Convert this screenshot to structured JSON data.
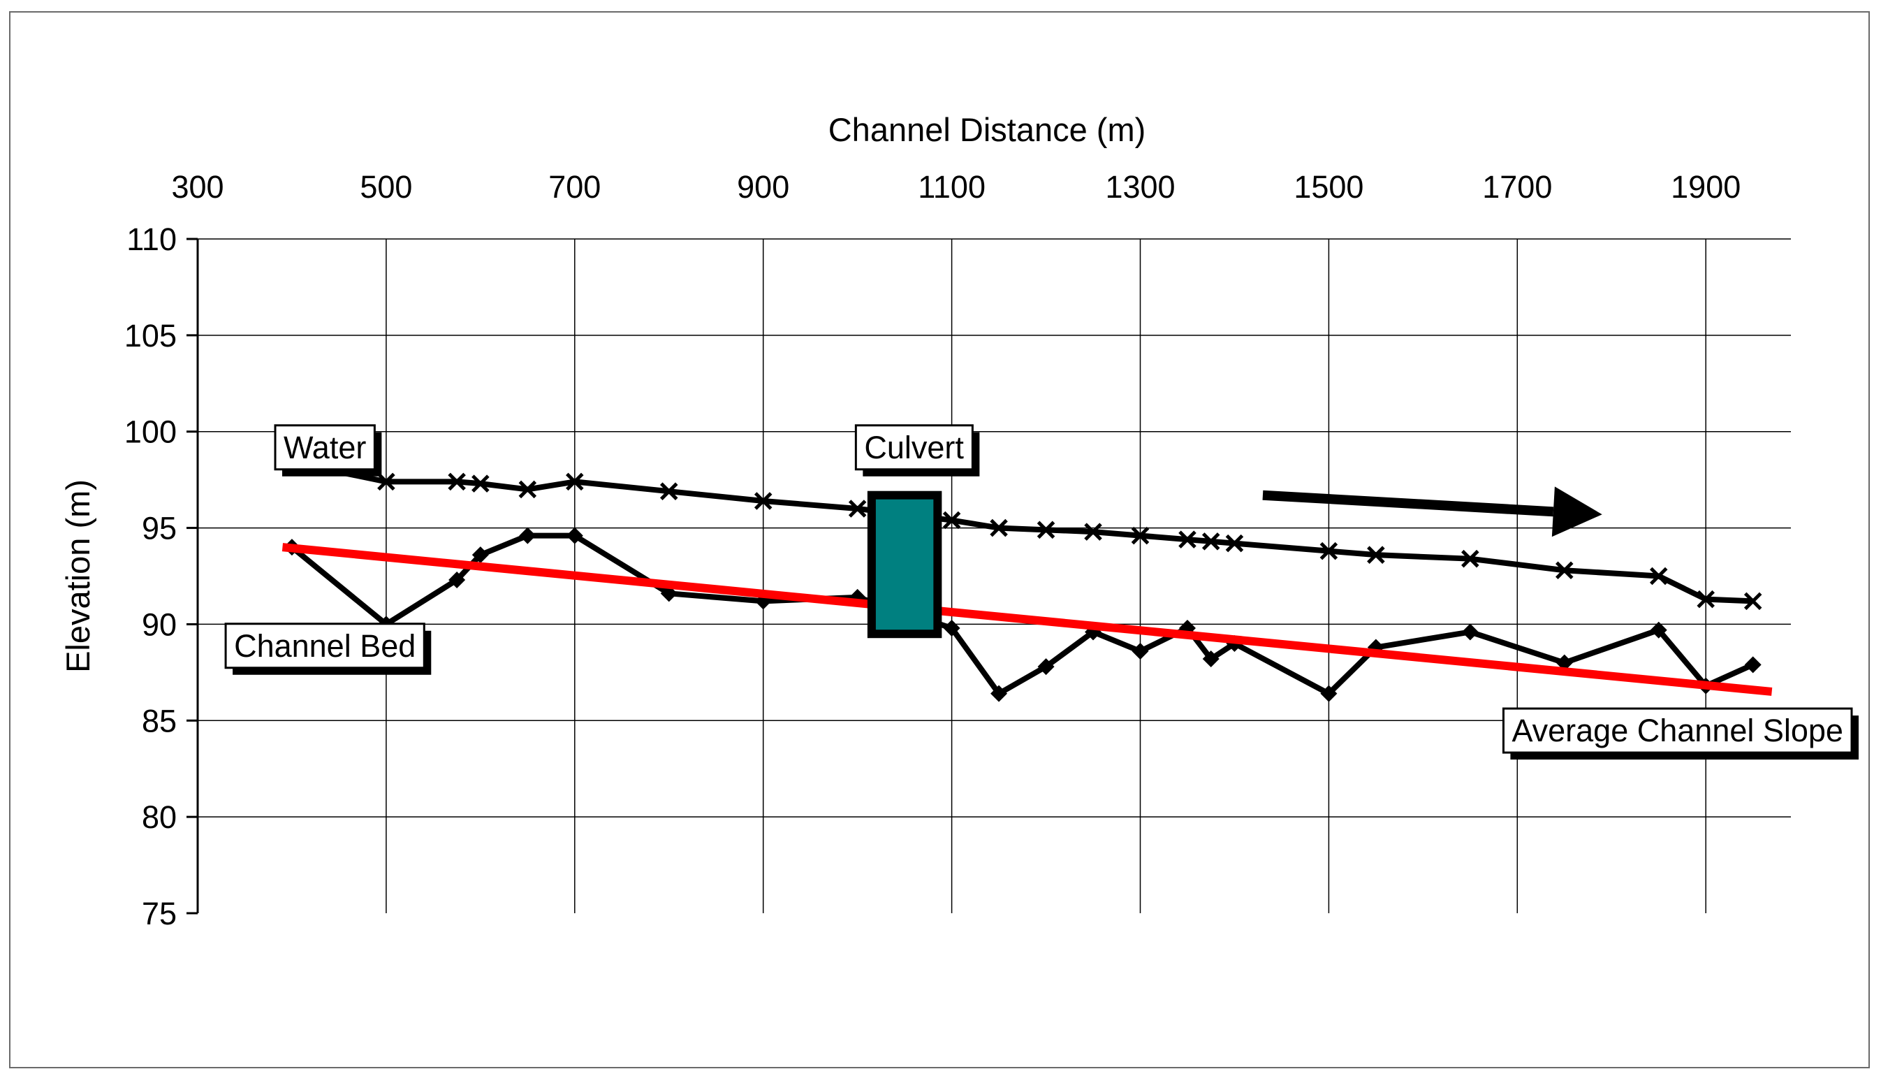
{
  "chart_data": {
    "type": "line",
    "xlabel": "Channel Distance (m)",
    "ylabel": "Elevation (m)",
    "xlim": [
      300,
      2000
    ],
    "ylim": [
      75,
      110
    ],
    "x_ticks": [
      300,
      500,
      700,
      900,
      1100,
      1300,
      1500,
      1700,
      1900
    ],
    "y_ticks": [
      75,
      80,
      85,
      90,
      95,
      100,
      105,
      110
    ],
    "x_axis_position": "top",
    "grid": true,
    "series": [
      {
        "name": "Water",
        "marker": "x",
        "color": "#000000",
        "points": [
          [
            400,
            98.4
          ],
          [
            500,
            97.4
          ],
          [
            575,
            97.4
          ],
          [
            600,
            97.3
          ],
          [
            650,
            97.0
          ],
          [
            700,
            97.4
          ],
          [
            800,
            96.9
          ],
          [
            900,
            96.4
          ],
          [
            1000,
            96.0
          ],
          [
            1100,
            95.4
          ],
          [
            1150,
            95.0
          ],
          [
            1200,
            94.9
          ],
          [
            1250,
            94.8
          ],
          [
            1300,
            94.6
          ],
          [
            1350,
            94.4
          ],
          [
            1375,
            94.3
          ],
          [
            1400,
            94.2
          ],
          [
            1500,
            93.8
          ],
          [
            1550,
            93.6
          ],
          [
            1650,
            93.4
          ],
          [
            1750,
            92.8
          ],
          [
            1850,
            92.5
          ],
          [
            1900,
            91.3
          ],
          [
            1950,
            91.2
          ]
        ]
      },
      {
        "name": "Channel Bed",
        "marker": "diamond",
        "color": "#000000",
        "points": [
          [
            400,
            94.0
          ],
          [
            500,
            90.0
          ],
          [
            575,
            92.3
          ],
          [
            600,
            93.6
          ],
          [
            650,
            94.6
          ],
          [
            700,
            94.6
          ],
          [
            800,
            91.6
          ],
          [
            900,
            91.2
          ],
          [
            1000,
            91.4
          ],
          [
            1100,
            89.8
          ],
          [
            1150,
            86.4
          ],
          [
            1200,
            87.8
          ],
          [
            1250,
            89.6
          ],
          [
            1300,
            88.6
          ],
          [
            1350,
            89.8
          ],
          [
            1375,
            88.2
          ],
          [
            1400,
            89.0
          ],
          [
            1500,
            86.4
          ],
          [
            1550,
            88.8
          ],
          [
            1650,
            89.6
          ],
          [
            1750,
            88.0
          ],
          [
            1850,
            89.7
          ],
          [
            1900,
            86.8
          ],
          [
            1950,
            87.9
          ]
        ]
      },
      {
        "name": "Average Channel Slope",
        "marker": "none",
        "color": "#ff0000",
        "points": [
          [
            390,
            94.0
          ],
          [
            1970,
            86.5
          ]
        ]
      }
    ],
    "culvert": {
      "x_start": 1015,
      "x_end": 1085,
      "y_bottom": 89.5,
      "y_top": 96.7,
      "color": "#008080"
    },
    "flow_arrow": {
      "from": [
        1430,
        96.7
      ],
      "to": [
        1790,
        95.7
      ]
    },
    "annotations": [
      {
        "text": "Water",
        "anchor_x": 435,
        "anchor_y": 99.2
      },
      {
        "text": "Culvert",
        "anchor_x": 1060,
        "anchor_y": 99.2
      },
      {
        "text": "Channel Bed",
        "anchor_x": 435,
        "anchor_y": 88.9
      },
      {
        "text": "Average Channel Slope",
        "anchor_x": 1870,
        "anchor_y": 84.5
      }
    ]
  }
}
